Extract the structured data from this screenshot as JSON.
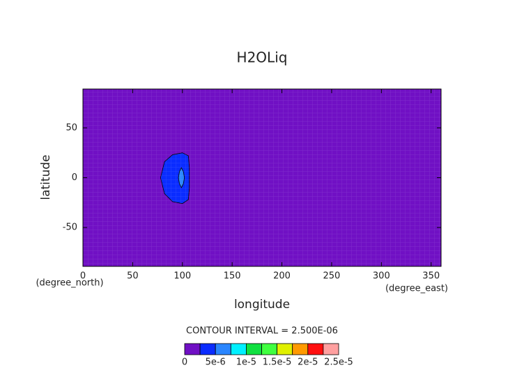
{
  "chart_data": {
    "type": "contour",
    "title": "H2OLiq",
    "x_label": "longitude",
    "x_units": "(degree_east)",
    "y_label": "latitude",
    "y_units": "(degree_north)",
    "xlim": [
      0,
      360
    ],
    "xticks": [
      0,
      50,
      100,
      150,
      200,
      250,
      300,
      350
    ],
    "ylim": [
      -89,
      89
    ],
    "yticks": [
      -50,
      0,
      50
    ],
    "background_color": "#7010c4",
    "contour_interval": "CONTOUR INTERVAL = 2.500E-06",
    "levels": [
      0,
      2.5e-06,
      5e-06,
      7.5e-06,
      1e-05,
      1.25e-05,
      1.5e-05,
      1.75e-05,
      2e-05,
      2.25e-05,
      2.5e-05
    ],
    "colors": [
      "#7010c4",
      "#0a2cff",
      "#2a86ff",
      "#00f0ff",
      "#10e040",
      "#40ff40",
      "#e0f000",
      "#ff9a00",
      "#ff1010",
      "#ffa0a0"
    ],
    "colorbar_ticks": [
      0,
      {
        "value": 5e-06,
        "label": "5e-6"
      },
      {
        "value": 1e-05,
        "label": "1e-5"
      },
      {
        "value": 1.5e-05,
        "label": "1.5e-5"
      },
      {
        "value": 2e-05,
        "label": "2e-5"
      },
      {
        "value": 2.5e-05,
        "label": "2.5e-5"
      }
    ],
    "contours": [
      {
        "level": 2.5e-06,
        "lon": [
          100,
          106,
          107,
          107,
          106,
          100,
          90,
          82,
          78,
          82,
          90
        ],
        "lat": [
          25,
          22,
          10,
          -10,
          -22,
          -26,
          -24,
          -16,
          0,
          16,
          23
        ]
      },
      {
        "level": 5e-06,
        "lon": [
          99,
          101,
          102,
          101,
          99,
          97,
          96,
          97
        ],
        "lat": [
          10,
          6,
          0,
          -6,
          -10,
          -6,
          0,
          6
        ]
      }
    ]
  }
}
